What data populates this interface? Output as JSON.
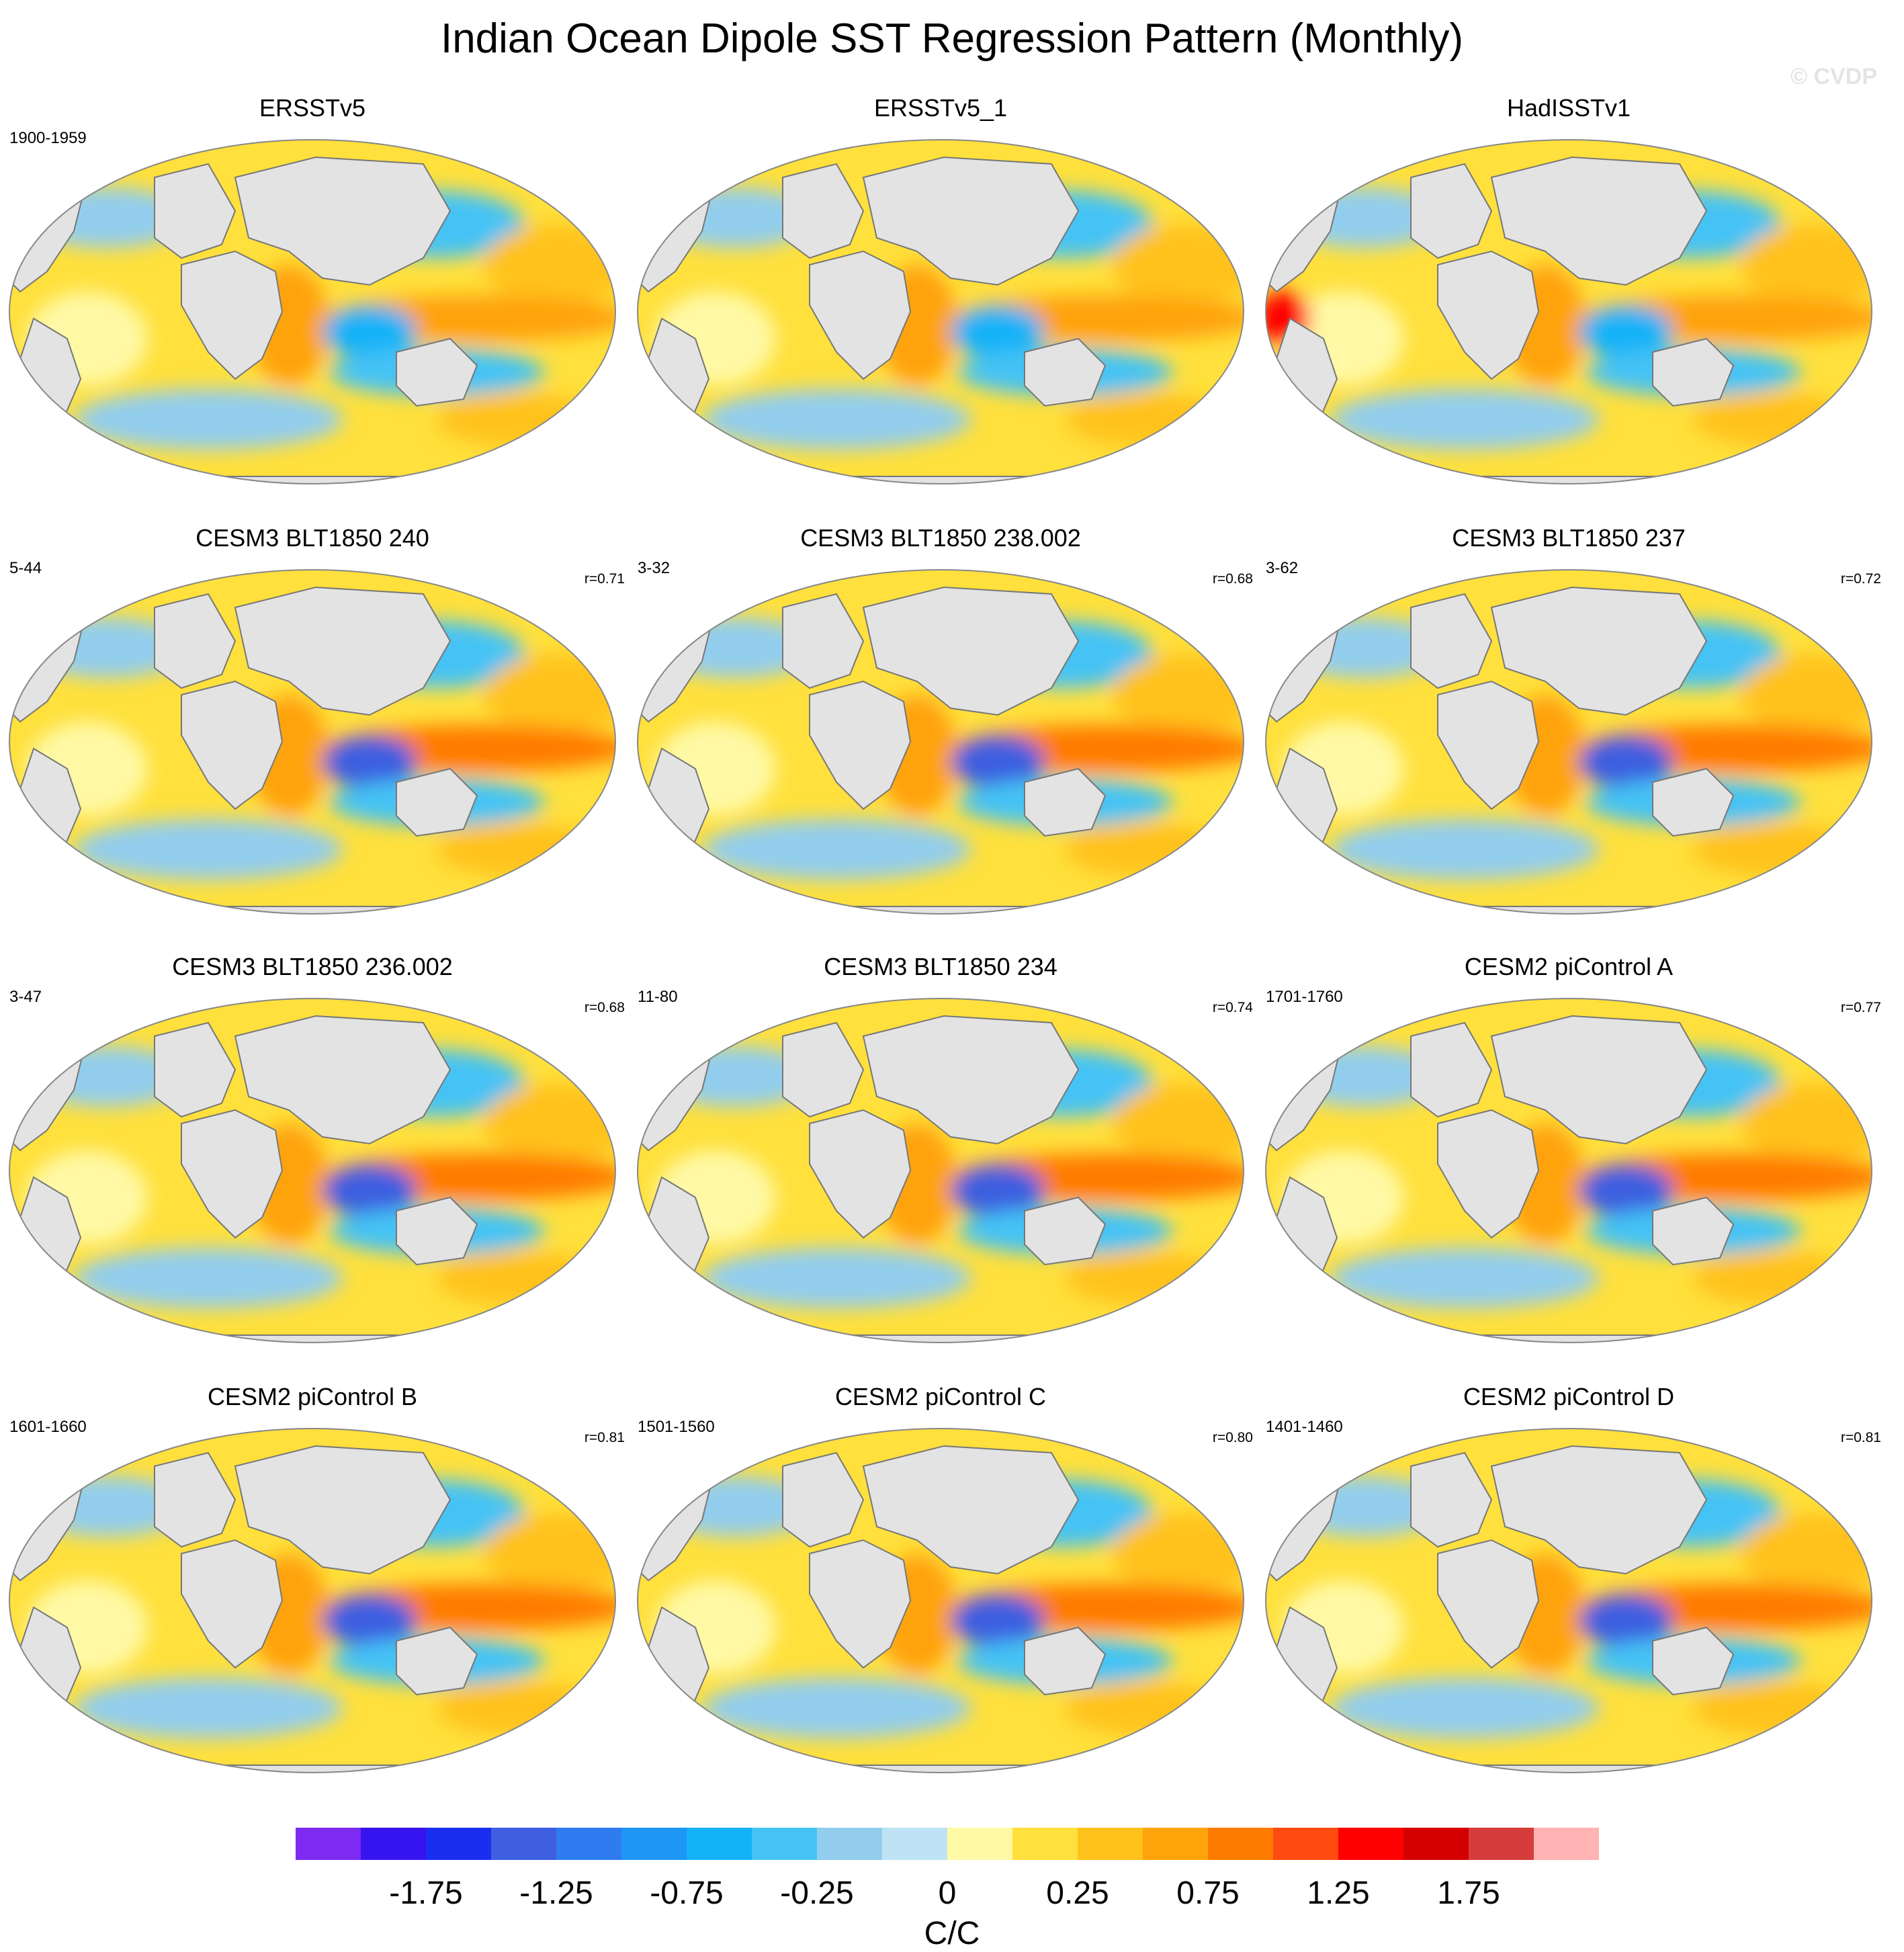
{
  "title": "Indian Ocean Dipole SST Regression Pattern (Monthly)",
  "watermark": "© CVDP",
  "panels": [
    {
      "title": "ERSSTv5",
      "period": "1900-1959",
      "corr": ""
    },
    {
      "title": "ERSSTv5_1",
      "period": "",
      "corr": ""
    },
    {
      "title": "HadISSTv1",
      "period": "",
      "corr": ""
    },
    {
      "title": "CESM3 BLT1850 240",
      "period": "5-44",
      "corr": "r=0.71"
    },
    {
      "title": "CESM3 BLT1850 238.002",
      "period": "3-32",
      "corr": "r=0.68"
    },
    {
      "title": "CESM3 BLT1850 237",
      "period": "3-62",
      "corr": "r=0.72"
    },
    {
      "title": "CESM3 BLT1850 236.002",
      "period": "3-47",
      "corr": "r=0.68"
    },
    {
      "title": "CESM3 BLT1850 234",
      "period": "11-80",
      "corr": "r=0.74"
    },
    {
      "title": "CESM2 piControl A",
      "period": "1701-1760",
      "corr": "r=0.77"
    },
    {
      "title": "CESM2 piControl B",
      "period": "1601-1660",
      "corr": "r=0.81"
    },
    {
      "title": "CESM2 piControl C",
      "period": "1501-1560",
      "corr": "r=0.80"
    },
    {
      "title": "CESM2 piControl D",
      "period": "1401-1460",
      "corr": "r=0.81"
    }
  ],
  "colorbar": {
    "units": "C/C",
    "tick_labels": [
      "-1.75",
      "-1.25",
      "-0.75",
      "-0.25",
      "0",
      "0.25",
      "0.75",
      "1.25",
      "1.75"
    ],
    "colors": [
      "#7f2af0",
      "#3614f0",
      "#1a2ef0",
      "#3d5fe0",
      "#2f7cf0",
      "#1e96f5",
      "#14b2f8",
      "#45c3f5",
      "#92cdee",
      "#bfe3f5",
      "#fff9a6",
      "#ffe03c",
      "#ffc21a",
      "#ffa30a",
      "#ff7b00",
      "#ff4a10",
      "#ff0000",
      "#d40000",
      "#d63c3c",
      "#ffb3b3"
    ]
  },
  "legend_colors": {
    "land": "#e3e3e3",
    "coast": "#777777"
  }
}
